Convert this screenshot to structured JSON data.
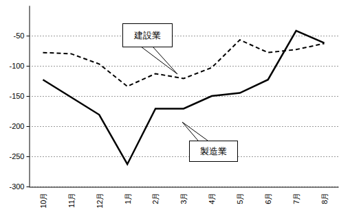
{
  "chart_data": {
    "type": "line",
    "categories": [
      "10月",
      "11月",
      "12月",
      "1月",
      "2月",
      "3月",
      "4月",
      "5月",
      "6月",
      "7月",
      "8月"
    ],
    "series": [
      {
        "name": "建設業",
        "color": "#000000",
        "line_style": "dashed",
        "values": [
          -78,
          -80,
          -97,
          -134,
          -113,
          -121,
          -103,
          -57,
          -78,
          -73,
          -63
        ]
      },
      {
        "name": "製造業",
        "color": "#000000",
        "line_style": "solid",
        "values": [
          -123,
          -152,
          -181,
          -263,
          -171,
          -171,
          -150,
          -145,
          -123,
          -42,
          -62
        ]
      }
    ],
    "ylim": [
      -300,
      0
    ],
    "yticks": [
      -300,
      -250,
      -200,
      -150,
      -100,
      -50
    ],
    "grid": true
  }
}
